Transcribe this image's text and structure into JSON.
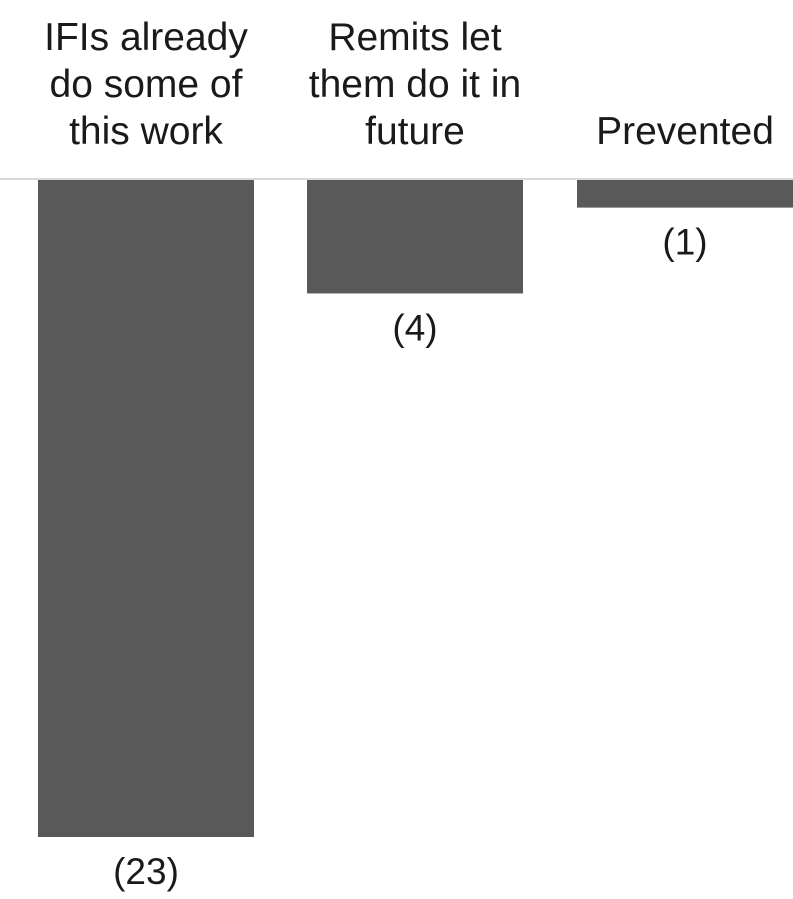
{
  "chart_data": {
    "type": "bar",
    "orientation": "downward",
    "categories": [
      [
        "IFIs already",
        "do some of",
        "this work"
      ],
      [
        "Remits let",
        "them do it in",
        "future"
      ],
      [
        "Prevented"
      ]
    ],
    "values": [
      23,
      4,
      1
    ],
    "value_labels": [
      "(23)",
      "(4)",
      "(1)"
    ],
    "title": "",
    "xlabel": "",
    "ylabel": "",
    "ylim": [
      0,
      23
    ],
    "grid": false,
    "legend": "none",
    "colors": {
      "bar": "#595959",
      "baseline": "#d9d9d9",
      "text": "#1a1a1a"
    }
  }
}
